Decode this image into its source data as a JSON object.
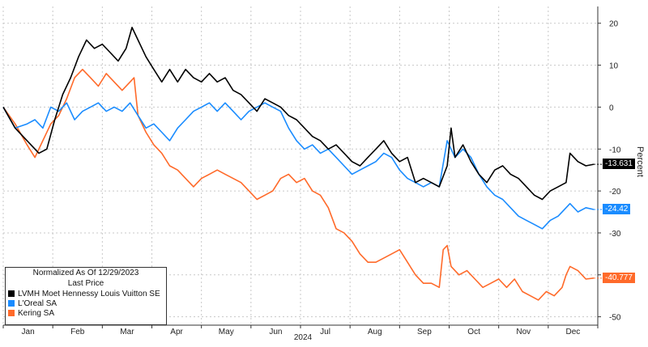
{
  "chart_data": {
    "type": "line",
    "xlabel": "2024",
    "ylabel": "Percent",
    "ylim": [
      -52,
      24
    ],
    "y_ticks": [
      20,
      10,
      0,
      -10,
      -20,
      -30,
      -40,
      -50
    ],
    "x_months": [
      "Jan",
      "Feb",
      "Mar",
      "Apr",
      "May",
      "Jun",
      "Jul",
      "Aug",
      "Sep",
      "Oct",
      "Nov",
      "Dec"
    ],
    "legend": {
      "title_line1": "Normalized As Of 12/29/2023",
      "title_line2": "Last Price",
      "placement": "bottom-left"
    },
    "grid": true,
    "series": [
      {
        "name": "LVMH Moet Hennessy Louis Vuitton SE",
        "color": "#000000",
        "last_label": "-13.631",
        "points": [
          [
            0,
            0
          ],
          [
            3,
            -5
          ],
          [
            6,
            -8
          ],
          [
            9,
            -11
          ],
          [
            11,
            -10
          ],
          [
            13,
            -3
          ],
          [
            15,
            3
          ],
          [
            17,
            7
          ],
          [
            19,
            12
          ],
          [
            21,
            16
          ],
          [
            23,
            14
          ],
          [
            25,
            15
          ],
          [
            27,
            13
          ],
          [
            29,
            11
          ],
          [
            31,
            14
          ],
          [
            32.5,
            19
          ],
          [
            34,
            16
          ],
          [
            36,
            12
          ],
          [
            38,
            9
          ],
          [
            40,
            6
          ],
          [
            42,
            9
          ],
          [
            44,
            6
          ],
          [
            46,
            9
          ],
          [
            48,
            7
          ],
          [
            50,
            6
          ],
          [
            52,
            8
          ],
          [
            54,
            6
          ],
          [
            56,
            7
          ],
          [
            58,
            4
          ],
          [
            60,
            3
          ],
          [
            62,
            1
          ],
          [
            64,
            -1
          ],
          [
            66,
            2
          ],
          [
            68,
            1
          ],
          [
            70,
            0
          ],
          [
            72,
            -2
          ],
          [
            74,
            -3
          ],
          [
            76,
            -5
          ],
          [
            78,
            -7
          ],
          [
            80,
            -8
          ],
          [
            82,
            -10
          ],
          [
            84,
            -9
          ],
          [
            86,
            -11
          ],
          [
            88,
            -13
          ],
          [
            90,
            -14
          ],
          [
            92,
            -12
          ],
          [
            94,
            -10
          ],
          [
            96,
            -8
          ],
          [
            98,
            -11
          ],
          [
            100,
            -13
          ],
          [
            102,
            -12
          ],
          [
            104,
            -18
          ],
          [
            106,
            -17
          ],
          [
            108,
            -18
          ],
          [
            110,
            -19
          ],
          [
            112,
            -14
          ],
          [
            113,
            -5
          ],
          [
            114,
            -12
          ],
          [
            116,
            -9
          ],
          [
            118,
            -13
          ],
          [
            120,
            -16
          ],
          [
            122,
            -18
          ],
          [
            124,
            -15
          ],
          [
            126,
            -14
          ],
          [
            128,
            -16
          ],
          [
            130,
            -17
          ],
          [
            132,
            -19
          ],
          [
            134,
            -21
          ],
          [
            136,
            -22
          ],
          [
            138,
            -20
          ],
          [
            140,
            -19
          ],
          [
            142,
            -18
          ],
          [
            143,
            -11
          ],
          [
            145,
            -13
          ],
          [
            147,
            -14
          ],
          [
            149,
            -13.631
          ]
        ]
      },
      {
        "name": "L'Oreal SA",
        "color": "#1a8cff",
        "last_label": "-24.42",
        "points": [
          [
            0,
            0
          ],
          [
            3,
            -5
          ],
          [
            6,
            -4
          ],
          [
            8,
            -3
          ],
          [
            10,
            -5
          ],
          [
            12,
            0
          ],
          [
            14,
            -1
          ],
          [
            16,
            1
          ],
          [
            18,
            -3
          ],
          [
            20,
            -1
          ],
          [
            22,
            0
          ],
          [
            24,
            1
          ],
          [
            26,
            -1
          ],
          [
            28,
            0
          ],
          [
            30,
            -1
          ],
          [
            32,
            1
          ],
          [
            34,
            -2
          ],
          [
            36,
            -5
          ],
          [
            38,
            -4
          ],
          [
            40,
            -6
          ],
          [
            42,
            -8
          ],
          [
            44,
            -5
          ],
          [
            46,
            -3
          ],
          [
            48,
            -1
          ],
          [
            50,
            0
          ],
          [
            52,
            1
          ],
          [
            54,
            -1
          ],
          [
            56,
            1
          ],
          [
            58,
            -1
          ],
          [
            60,
            -3
          ],
          [
            62,
            -1
          ],
          [
            64,
            0
          ],
          [
            66,
            1
          ],
          [
            68,
            0
          ],
          [
            70,
            -1
          ],
          [
            72,
            -5
          ],
          [
            74,
            -8
          ],
          [
            76,
            -10
          ],
          [
            78,
            -9
          ],
          [
            80,
            -11
          ],
          [
            82,
            -10
          ],
          [
            84,
            -12
          ],
          [
            86,
            -14
          ],
          [
            88,
            -16
          ],
          [
            90,
            -15
          ],
          [
            92,
            -14
          ],
          [
            94,
            -13
          ],
          [
            96,
            -11
          ],
          [
            98,
            -12
          ],
          [
            100,
            -15
          ],
          [
            102,
            -17
          ],
          [
            104,
            -18
          ],
          [
            106,
            -19
          ],
          [
            108,
            -18
          ],
          [
            110,
            -19
          ],
          [
            112,
            -8
          ],
          [
            113,
            -10
          ],
          [
            114,
            -12
          ],
          [
            116,
            -10
          ],
          [
            118,
            -12
          ],
          [
            120,
            -16
          ],
          [
            122,
            -19
          ],
          [
            124,
            -21
          ],
          [
            126,
            -22
          ],
          [
            128,
            -24
          ],
          [
            130,
            -26
          ],
          [
            132,
            -27
          ],
          [
            134,
            -28
          ],
          [
            136,
            -29
          ],
          [
            138,
            -27
          ],
          [
            140,
            -26
          ],
          [
            142,
            -24
          ],
          [
            143,
            -23
          ],
          [
            145,
            -25
          ],
          [
            147,
            -24
          ],
          [
            149,
            -24.42
          ]
        ]
      },
      {
        "name": "Kering SA",
        "color": "#ff6a2a",
        "last_label": "-40.777",
        "points": [
          [
            0,
            0
          ],
          [
            3,
            -4
          ],
          [
            6,
            -9
          ],
          [
            8,
            -12
          ],
          [
            10,
            -8
          ],
          [
            12,
            -4
          ],
          [
            14,
            -2
          ],
          [
            16,
            2
          ],
          [
            18,
            7
          ],
          [
            20,
            9
          ],
          [
            22,
            7
          ],
          [
            24,
            5
          ],
          [
            26,
            8
          ],
          [
            28,
            6
          ],
          [
            30,
            4
          ],
          [
            32,
            6
          ],
          [
            33,
            7
          ],
          [
            34,
            -2
          ],
          [
            36,
            -6
          ],
          [
            38,
            -9
          ],
          [
            40,
            -11
          ],
          [
            42,
            -14
          ],
          [
            44,
            -15
          ],
          [
            46,
            -17
          ],
          [
            48,
            -19
          ],
          [
            50,
            -17
          ],
          [
            52,
            -16
          ],
          [
            54,
            -15
          ],
          [
            56,
            -16
          ],
          [
            58,
            -17
          ],
          [
            60,
            -18
          ],
          [
            62,
            -20
          ],
          [
            64,
            -22
          ],
          [
            66,
            -21
          ],
          [
            68,
            -20
          ],
          [
            70,
            -17
          ],
          [
            72,
            -16
          ],
          [
            74,
            -18
          ],
          [
            76,
            -17
          ],
          [
            78,
            -20
          ],
          [
            80,
            -21
          ],
          [
            82,
            -24
          ],
          [
            84,
            -29
          ],
          [
            86,
            -30
          ],
          [
            88,
            -32
          ],
          [
            90,
            -35
          ],
          [
            92,
            -37
          ],
          [
            94,
            -37
          ],
          [
            96,
            -36
          ],
          [
            98,
            -35
          ],
          [
            100,
            -34
          ],
          [
            102,
            -37
          ],
          [
            104,
            -40
          ],
          [
            106,
            -42
          ],
          [
            108,
            -42
          ],
          [
            110,
            -43
          ],
          [
            111,
            -34
          ],
          [
            112,
            -33
          ],
          [
            113,
            -38
          ],
          [
            115,
            -40
          ],
          [
            117,
            -39
          ],
          [
            119,
            -41
          ],
          [
            121,
            -43
          ],
          [
            123,
            -42
          ],
          [
            125,
            -41
          ],
          [
            127,
            -43
          ],
          [
            129,
            -41
          ],
          [
            131,
            -44
          ],
          [
            133,
            -45
          ],
          [
            135,
            -46
          ],
          [
            137,
            -44
          ],
          [
            139,
            -45
          ],
          [
            141,
            -43
          ],
          [
            142,
            -40
          ],
          [
            143,
            -38
          ],
          [
            145,
            -39
          ],
          [
            147,
            -41
          ],
          [
            149,
            -40.777
          ]
        ]
      }
    ]
  }
}
